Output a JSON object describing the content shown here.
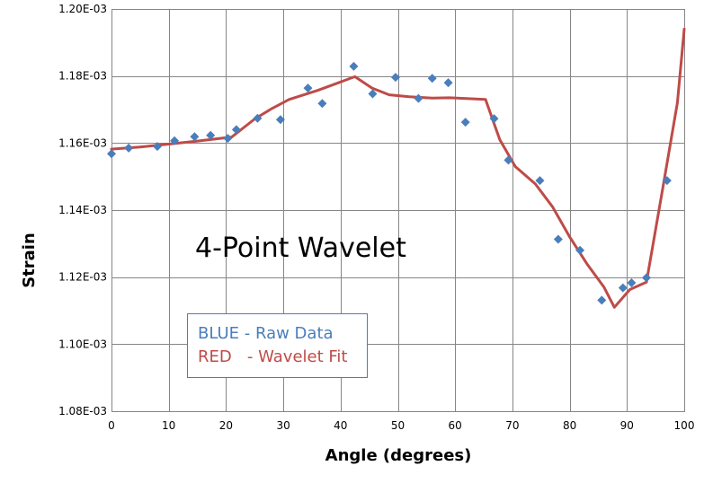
{
  "chart_data": {
    "type": "scatter",
    "xlabel": "Angle (degrees)",
    "ylabel": "Strain",
    "xlim": [
      0,
      100
    ],
    "ylim": [
      0.00108,
      0.0012
    ],
    "x_ticks": [
      "0",
      "10",
      "20",
      "30",
      "40",
      "50",
      "60",
      "70",
      "80",
      "90",
      "100"
    ],
    "y_ticks": [
      "1.08E-03",
      "1.10E-03",
      "1.12E-03",
      "1.14E-03",
      "1.16E-03",
      "1.18E-03",
      "1.20E-03"
    ],
    "grid": true,
    "annotation": "4-Point  Wavelet",
    "legend_lines": [
      "BLUE - Raw Data",
      "RED   - Wavelet Fit"
    ],
    "colors": {
      "raw": "#4a7ebb",
      "fit": "#be4b48",
      "legend_border": "#4a7ebb",
      "grid": "#868686"
    },
    "series": [
      {
        "type": "scatter",
        "points": [
          [
            0.0,
            0.0011568
          ],
          [
            3.0,
            0.0011585
          ],
          [
            8.0,
            0.001159
          ],
          [
            11.0,
            0.0011607
          ],
          [
            14.5,
            0.0011619
          ],
          [
            17.3,
            0.0011623
          ],
          [
            20.3,
            0.0011614
          ],
          [
            21.8,
            0.001164
          ],
          [
            25.5,
            0.0011674
          ],
          [
            29.5,
            0.001167
          ],
          [
            34.3,
            0.0011764
          ],
          [
            36.8,
            0.0011718
          ],
          [
            42.3,
            0.0011829
          ],
          [
            45.6,
            0.0011747
          ],
          [
            49.6,
            0.0011796
          ],
          [
            53.6,
            0.0011733
          ],
          [
            56.0,
            0.0011793
          ],
          [
            58.8,
            0.001178
          ],
          [
            61.8,
            0.0011662
          ],
          [
            66.8,
            0.0011673
          ],
          [
            69.3,
            0.0011549
          ],
          [
            74.8,
            0.0011488
          ],
          [
            78.0,
            0.0011313
          ],
          [
            81.8,
            0.001128
          ],
          [
            85.6,
            0.0011131
          ],
          [
            89.3,
            0.0011168
          ],
          [
            90.8,
            0.0011183
          ],
          [
            93.4,
            0.0011198
          ],
          [
            97.0,
            0.0011488
          ]
        ]
      },
      {
        "type": "line",
        "points": [
          [
            0.0,
            0.0011582
          ],
          [
            5.0,
            0.0011588
          ],
          [
            10.0,
            0.0011597
          ],
          [
            15.0,
            0.0011606
          ],
          [
            21.0,
            0.0011618
          ],
          [
            25.0,
            0.0011672
          ],
          [
            28.0,
            0.0011703
          ],
          [
            31.0,
            0.001173
          ],
          [
            36.0,
            0.0011757
          ],
          [
            42.5,
            0.0011798
          ],
          [
            45.5,
            0.0011764
          ],
          [
            48.5,
            0.0011744
          ],
          [
            52.0,
            0.0011738
          ],
          [
            56.0,
            0.0011734
          ],
          [
            59.0,
            0.0011735
          ],
          [
            62.0,
            0.0011733
          ],
          [
            65.3,
            0.001173
          ],
          [
            67.8,
            0.001161
          ],
          [
            70.5,
            0.001153
          ],
          [
            74.0,
            0.0011478
          ],
          [
            77.0,
            0.001141
          ],
          [
            80.0,
            0.001132
          ],
          [
            83.0,
            0.001124
          ],
          [
            86.0,
            0.001117
          ],
          [
            87.8,
            0.001111
          ],
          [
            90.5,
            0.0011163
          ],
          [
            93.4,
            0.0011185
          ],
          [
            96.0,
            0.001144
          ],
          [
            98.8,
            0.001172
          ],
          [
            100.0,
            0.001194
          ]
        ]
      }
    ]
  }
}
